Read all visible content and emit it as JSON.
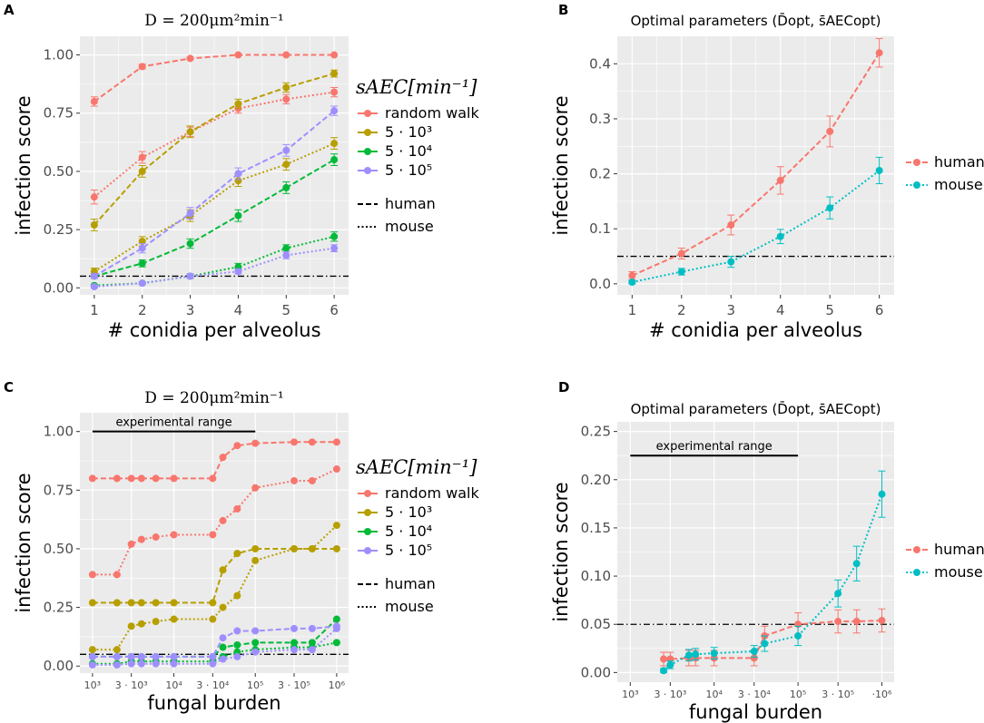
{
  "colors": {
    "random_walk": "#F8766D",
    "s5e3": "#B79F00",
    "s5e4": "#00BA38",
    "s5e5": "#9E8FFF",
    "human": "#F8766D",
    "mouse": "#00BFC4",
    "panel_bg": "#EBEBEB",
    "grid": "#FFFFFF",
    "ref_line": "#000000"
  },
  "legend_AC": {
    "title": "s_AEC [min^-1]",
    "title_display": "sAEC[min⁻¹]",
    "items": [
      "random walk",
      "5 · 10³",
      "5 · 10⁴",
      "5 · 10⁵"
    ],
    "linetypes": [
      "human",
      "mouse"
    ]
  },
  "legend_BD": {
    "items": [
      "human",
      "mouse"
    ]
  },
  "chart_data": [
    {
      "panel": "A",
      "type": "line",
      "title": "D = 200μm²min⁻¹",
      "xlabel": "# conidia per alveolus",
      "ylabel": "infection score",
      "x": [
        1,
        2,
        3,
        4,
        5,
        6
      ],
      "xticks": [
        "1",
        "2",
        "3",
        "4",
        "5",
        "6"
      ],
      "ylim": [
        -0.03,
        1.08
      ],
      "yticks": [
        "0.00",
        "0.25",
        "0.50",
        "0.75",
        "1.00"
      ],
      "yticks_values": [
        0,
        0.25,
        0.5,
        0.75,
        1.0
      ],
      "reference_line": 0.05,
      "series": [
        {
          "name": "random walk",
          "linetype": "human",
          "values": [
            0.8,
            0.95,
            0.985,
            1.0,
            1.0,
            1.0
          ],
          "errors": [
            0.02,
            0.01,
            0.005,
            0.0,
            0.0,
            0.0
          ]
        },
        {
          "name": "random walk",
          "linetype": "mouse",
          "values": [
            0.39,
            0.56,
            0.67,
            0.77,
            0.81,
            0.84
          ],
          "errors": [
            0.03,
            0.025,
            0.02,
            0.02,
            0.02,
            0.02
          ]
        },
        {
          "name": "5 · 10³",
          "linetype": "human",
          "values": [
            0.27,
            0.5,
            0.67,
            0.79,
            0.86,
            0.92
          ],
          "errors": [
            0.025,
            0.025,
            0.025,
            0.02,
            0.02,
            0.015
          ]
        },
        {
          "name": "5 · 10³",
          "linetype": "mouse",
          "values": [
            0.07,
            0.2,
            0.31,
            0.46,
            0.53,
            0.62
          ],
          "errors": [
            0.015,
            0.02,
            0.025,
            0.025,
            0.025,
            0.025
          ]
        },
        {
          "name": "5 · 10⁴",
          "linetype": "human",
          "values": [
            0.05,
            0.105,
            0.19,
            0.31,
            0.43,
            0.55
          ],
          "errors": [
            0.01,
            0.015,
            0.02,
            0.025,
            0.025,
            0.025
          ]
        },
        {
          "name": "5 · 10⁴",
          "linetype": "mouse",
          "values": [
            0.01,
            0.02,
            0.05,
            0.09,
            0.17,
            0.22
          ],
          "errors": [
            0.005,
            0.005,
            0.01,
            0.015,
            0.015,
            0.02
          ]
        },
        {
          "name": "5 · 10⁵",
          "linetype": "human",
          "values": [
            0.05,
            0.17,
            0.32,
            0.49,
            0.59,
            0.76
          ],
          "errors": [
            0.01,
            0.02,
            0.025,
            0.025,
            0.025,
            0.02
          ]
        },
        {
          "name": "5 · 10⁵",
          "linetype": "mouse",
          "values": [
            0.005,
            0.02,
            0.05,
            0.07,
            0.14,
            0.17
          ],
          "errors": [
            0.005,
            0.005,
            0.01,
            0.01,
            0.015,
            0.015
          ]
        }
      ]
    },
    {
      "panel": "B",
      "type": "line",
      "title": "Optimal parameters (D̄opt, s̄AECopt)",
      "xlabel": "# conidia per alveolus",
      "ylabel": "infection score",
      "x": [
        1,
        2,
        3,
        4,
        5,
        6
      ],
      "xticks": [
        "1",
        "2",
        "3",
        "4",
        "5",
        "6"
      ],
      "ylim": [
        -0.02,
        0.45
      ],
      "yticks": [
        "0.0",
        "0.1",
        "0.2",
        "0.3",
        "0.4"
      ],
      "yticks_values": [
        0,
        0.1,
        0.2,
        0.3,
        0.4
      ],
      "reference_line": 0.05,
      "series": [
        {
          "name": "human",
          "values": [
            0.015,
            0.055,
            0.107,
            0.188,
            0.277,
            0.42
          ],
          "errors": [
            0.007,
            0.01,
            0.018,
            0.025,
            0.028,
            0.026
          ]
        },
        {
          "name": "mouse",
          "values": [
            0.003,
            0.022,
            0.04,
            0.086,
            0.138,
            0.206
          ],
          "errors": [
            0.003,
            0.006,
            0.01,
            0.013,
            0.02,
            0.024
          ]
        }
      ]
    },
    {
      "panel": "C",
      "type": "line",
      "title": "D = 200μm²min⁻¹",
      "xlabel": "fungal burden",
      "ylabel": "infection score",
      "x_log": true,
      "x": [
        1000,
        2000,
        3000,
        4000,
        6000,
        10000,
        30000,
        40000,
        60000,
        100000,
        300000,
        500000,
        1000000
      ],
      "xticks": [
        "10³",
        "3 · 10³",
        "10⁴",
        "3 · 10⁴",
        "10⁵",
        "3 · 10⁵",
        "10⁶"
      ],
      "xticks_values": [
        1000,
        3000,
        10000,
        30000,
        100000,
        300000,
        1000000
      ],
      "ylim": [
        -0.03,
        1.08
      ],
      "yticks": [
        "0.00",
        "0.25",
        "0.50",
        "0.75",
        "1.00"
      ],
      "yticks_values": [
        0,
        0.25,
        0.5,
        0.75,
        1.0
      ],
      "reference_line": 0.05,
      "annotation": {
        "text": "experimental range",
        "from": 1000,
        "to": 100000,
        "y": 1.0
      },
      "series": [
        {
          "name": "random walk",
          "linetype": "human",
          "values": [
            0.8,
            0.8,
            0.8,
            0.8,
            0.8,
            0.8,
            0.8,
            0.89,
            0.94,
            0.95,
            0.955,
            0.955,
            0.955
          ]
        },
        {
          "name": "random walk",
          "linetype": "mouse",
          "values": [
            0.39,
            0.39,
            0.52,
            0.54,
            0.55,
            0.56,
            0.56,
            0.62,
            0.67,
            0.76,
            0.79,
            0.79,
            0.84
          ]
        },
        {
          "name": "5 · 10³",
          "linetype": "human",
          "values": [
            0.27,
            0.27,
            0.27,
            0.27,
            0.27,
            0.27,
            0.27,
            0.41,
            0.48,
            0.5,
            0.5,
            0.5,
            0.5
          ]
        },
        {
          "name": "5 · 10³",
          "linetype": "mouse",
          "values": [
            0.07,
            0.07,
            0.17,
            0.18,
            0.19,
            0.2,
            0.2,
            0.25,
            0.3,
            0.45,
            0.5,
            0.5,
            0.6
          ]
        },
        {
          "name": "5 · 10⁴",
          "linetype": "human",
          "values": [
            0.04,
            0.04,
            0.04,
            0.04,
            0.04,
            0.04,
            0.04,
            0.08,
            0.09,
            0.1,
            0.1,
            0.1,
            0.2
          ]
        },
        {
          "name": "5 · 10⁴",
          "linetype": "mouse",
          "values": [
            0.01,
            0.01,
            0.02,
            0.02,
            0.02,
            0.02,
            0.02,
            0.04,
            0.06,
            0.07,
            0.08,
            0.08,
            0.1
          ]
        },
        {
          "name": "5 · 10⁵",
          "linetype": "human",
          "values": [
            0.04,
            0.04,
            0.04,
            0.04,
            0.04,
            0.04,
            0.04,
            0.12,
            0.15,
            0.15,
            0.16,
            0.16,
            0.17
          ]
        },
        {
          "name": "5 · 10⁵",
          "linetype": "mouse",
          "values": [
            0.005,
            0.005,
            0.01,
            0.01,
            0.01,
            0.01,
            0.01,
            0.03,
            0.04,
            0.06,
            0.07,
            0.07,
            0.16
          ]
        }
      ]
    },
    {
      "panel": "D",
      "type": "line",
      "title": "Optimal parameters (D̄opt, s̄AECopt)",
      "xlabel": "fungal burden",
      "ylabel": "infection score",
      "x_log": true,
      "xticks": [
        "10³",
        "3 · 10³",
        "10⁴",
        "3 · 10⁴",
        "10⁵",
        "3 · 10⁵",
        "·10⁶"
      ],
      "xticks_values": [
        1000,
        3000,
        10000,
        30000,
        100000,
        300000,
        1000000
      ],
      "ylim": [
        -0.01,
        0.26
      ],
      "yticks": [
        "0.00",
        "0.05",
        "0.10",
        "0.15",
        "0.20",
        "0.25"
      ],
      "yticks_values": [
        0,
        0.05,
        0.1,
        0.15,
        0.2,
        0.25
      ],
      "reference_line": 0.05,
      "annotation": {
        "text": "experimental range",
        "from": 1000,
        "to": 100000,
        "y": 0.225
      },
      "series": [
        {
          "name": "human",
          "x": [
            2500,
            3000,
            5000,
            6000,
            10000,
            30000,
            40000,
            100000,
            300000,
            500000,
            1000000
          ],
          "values": [
            0.014,
            0.014,
            0.015,
            0.015,
            0.015,
            0.015,
            0.038,
            0.05,
            0.053,
            0.053,
            0.054
          ],
          "errors": [
            0.007,
            0.007,
            0.008,
            0.008,
            0.008,
            0.008,
            0.01,
            0.012,
            0.012,
            0.012,
            0.012
          ]
        },
        {
          "name": "mouse",
          "x": [
            2500,
            3000,
            5000,
            6000,
            10000,
            30000,
            40000,
            100000,
            300000,
            500000,
            1000000
          ],
          "values": [
            0.002,
            0.008,
            0.018,
            0.019,
            0.02,
            0.022,
            0.03,
            0.038,
            0.082,
            0.113,
            0.185
          ],
          "errors": [
            0.002,
            0.004,
            0.006,
            0.006,
            0.006,
            0.006,
            0.008,
            0.01,
            0.014,
            0.018,
            0.024
          ]
        }
      ]
    }
  ]
}
